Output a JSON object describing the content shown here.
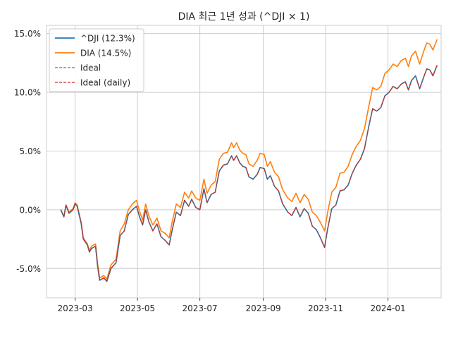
{
  "chart_data": {
    "type": "line",
    "title": "DIA 최근 1년 성과 (^DJI × 1)",
    "xlabel": "",
    "ylabel": "",
    "x_range": [
      "2023-02-01",
      "2024-02-22"
    ],
    "ylim": [
      -7.5,
      15.7
    ],
    "y_ticks": [
      -5,
      0,
      5,
      10,
      15
    ],
    "y_tick_labels": [
      "-5.0%",
      "0.0%",
      "5.0%",
      "10.0%",
      "15.0%"
    ],
    "x_ticks": [
      "2023-03-01",
      "2023-05-01",
      "2023-07-01",
      "2023-09-01",
      "2023-11-01",
      "2024-01-01"
    ],
    "x_tick_labels": [
      "2023-03",
      "2023-05",
      "2023-07",
      "2023-09",
      "2023-11",
      "2024-01"
    ],
    "grid": true,
    "legend_position": "top-left",
    "series": [
      {
        "name": "^DJI (12.3%)",
        "color": "#1f77b4",
        "style": "solid",
        "points": [
          [
            "2023-02-15",
            0.0
          ],
          [
            "2023-02-18",
            -0.6
          ],
          [
            "2023-02-20",
            0.4
          ],
          [
            "2023-02-23",
            -0.3
          ],
          [
            "2023-02-27",
            0.0
          ],
          [
            "2023-03-01",
            0.5
          ],
          [
            "2023-03-03",
            0.3
          ],
          [
            "2023-03-07",
            -1.2
          ],
          [
            "2023-03-09",
            -2.5
          ],
          [
            "2023-03-13",
            -3.0
          ],
          [
            "2023-03-15",
            -3.6
          ],
          [
            "2023-03-17",
            -3.3
          ],
          [
            "2023-03-21",
            -3.1
          ],
          [
            "2023-03-23",
            -4.8
          ],
          [
            "2023-03-25",
            -6.0
          ],
          [
            "2023-03-29",
            -5.8
          ],
          [
            "2023-04-01",
            -6.1
          ],
          [
            "2023-04-05",
            -5.0
          ],
          [
            "2023-04-10",
            -4.5
          ],
          [
            "2023-04-14",
            -2.2
          ],
          [
            "2023-04-18",
            -1.8
          ],
          [
            "2023-04-22",
            -0.4
          ],
          [
            "2023-04-26",
            0.0
          ],
          [
            "2023-04-30",
            0.3
          ],
          [
            "2023-05-03",
            -0.6
          ],
          [
            "2023-05-06",
            -1.3
          ],
          [
            "2023-05-09",
            0.0
          ],
          [
            "2023-05-12",
            -1.0
          ],
          [
            "2023-05-16",
            -1.8
          ],
          [
            "2023-05-20",
            -1.2
          ],
          [
            "2023-05-24",
            -2.3
          ],
          [
            "2023-05-28",
            -2.6
          ],
          [
            "2023-06-01",
            -3.0
          ],
          [
            "2023-06-04",
            -1.7
          ],
          [
            "2023-06-08",
            -0.2
          ],
          [
            "2023-06-12",
            -0.5
          ],
          [
            "2023-06-16",
            0.8
          ],
          [
            "2023-06-20",
            0.3
          ],
          [
            "2023-06-23",
            0.9
          ],
          [
            "2023-06-27",
            0.2
          ],
          [
            "2023-07-01",
            0.0
          ],
          [
            "2023-07-05",
            1.8
          ],
          [
            "2023-07-08",
            0.6
          ],
          [
            "2023-07-12",
            1.3
          ],
          [
            "2023-07-16",
            1.5
          ],
          [
            "2023-07-20",
            3.3
          ],
          [
            "2023-07-24",
            3.8
          ],
          [
            "2023-07-28",
            3.9
          ],
          [
            "2023-08-01",
            4.6
          ],
          [
            "2023-08-03",
            4.2
          ],
          [
            "2023-08-06",
            4.6
          ],
          [
            "2023-08-09",
            4.0
          ],
          [
            "2023-08-12",
            3.7
          ],
          [
            "2023-08-15",
            3.6
          ],
          [
            "2023-08-18",
            2.8
          ],
          [
            "2023-08-22",
            2.6
          ],
          [
            "2023-08-26",
            3.0
          ],
          [
            "2023-08-29",
            3.6
          ],
          [
            "2023-09-02",
            3.5
          ],
          [
            "2023-09-05",
            2.6
          ],
          [
            "2023-09-08",
            2.9
          ],
          [
            "2023-09-12",
            2.0
          ],
          [
            "2023-09-16",
            1.6
          ],
          [
            "2023-09-20",
            0.5
          ],
          [
            "2023-09-25",
            -0.2
          ],
          [
            "2023-09-29",
            -0.5
          ],
          [
            "2023-10-03",
            0.2
          ],
          [
            "2023-10-07",
            -0.6
          ],
          [
            "2023-10-11",
            0.1
          ],
          [
            "2023-10-15",
            -0.3
          ],
          [
            "2023-10-19",
            -1.4
          ],
          [
            "2023-10-23",
            -1.7
          ],
          [
            "2023-10-27",
            -2.4
          ],
          [
            "2023-10-31",
            -3.2
          ],
          [
            "2023-11-03",
            -1.6
          ],
          [
            "2023-11-07",
            0.1
          ],
          [
            "2023-11-11",
            0.4
          ],
          [
            "2023-11-15",
            1.6
          ],
          [
            "2023-11-19",
            1.7
          ],
          [
            "2023-11-23",
            2.1
          ],
          [
            "2023-11-27",
            3.1
          ],
          [
            "2023-12-01",
            3.8
          ],
          [
            "2023-12-05",
            4.3
          ],
          [
            "2023-12-09",
            5.2
          ],
          [
            "2023-12-13",
            7.0
          ],
          [
            "2023-12-17",
            8.6
          ],
          [
            "2023-12-21",
            8.4
          ],
          [
            "2023-12-25",
            8.7
          ],
          [
            "2023-12-29",
            9.7
          ],
          [
            "2024-01-02",
            10.0
          ],
          [
            "2024-01-06",
            10.5
          ],
          [
            "2024-01-10",
            10.3
          ],
          [
            "2024-01-14",
            10.7
          ],
          [
            "2024-01-18",
            10.9
          ],
          [
            "2024-01-21",
            10.2
          ],
          [
            "2024-01-24",
            11.0
          ],
          [
            "2024-01-28",
            11.4
          ],
          [
            "2024-02-01",
            10.3
          ],
          [
            "2024-02-05",
            11.3
          ],
          [
            "2024-02-08",
            12.0
          ],
          [
            "2024-02-11",
            11.9
          ],
          [
            "2024-02-14",
            11.4
          ],
          [
            "2024-02-18",
            12.3
          ]
        ]
      },
      {
        "name": "DIA (14.5%)",
        "color": "#ff7f0e",
        "style": "solid",
        "points": [
          [
            "2023-02-15",
            0.0
          ],
          [
            "2023-02-18",
            -0.6
          ],
          [
            "2023-02-20",
            0.4
          ],
          [
            "2023-02-23",
            -0.2
          ],
          [
            "2023-02-27",
            0.1
          ],
          [
            "2023-03-01",
            0.6
          ],
          [
            "2023-03-03",
            0.4
          ],
          [
            "2023-03-07",
            -1.1
          ],
          [
            "2023-03-09",
            -2.4
          ],
          [
            "2023-03-13",
            -2.9
          ],
          [
            "2023-03-15",
            -3.5
          ],
          [
            "2023-03-17",
            -3.1
          ],
          [
            "2023-03-21",
            -2.9
          ],
          [
            "2023-03-23",
            -4.6
          ],
          [
            "2023-03-25",
            -5.8
          ],
          [
            "2023-03-29",
            -5.6
          ],
          [
            "2023-04-01",
            -5.9
          ],
          [
            "2023-04-05",
            -4.7
          ],
          [
            "2023-04-10",
            -4.2
          ],
          [
            "2023-04-14",
            -1.8
          ],
          [
            "2023-04-18",
            -1.2
          ],
          [
            "2023-04-22",
            0.0
          ],
          [
            "2023-04-26",
            0.5
          ],
          [
            "2023-04-30",
            0.8
          ],
          [
            "2023-05-03",
            -0.1
          ],
          [
            "2023-05-06",
            -0.9
          ],
          [
            "2023-05-09",
            0.5
          ],
          [
            "2023-05-12",
            -0.5
          ],
          [
            "2023-05-16",
            -1.3
          ],
          [
            "2023-05-20",
            -0.7
          ],
          [
            "2023-05-24",
            -1.8
          ],
          [
            "2023-05-28",
            -2.0
          ],
          [
            "2023-06-01",
            -2.4
          ],
          [
            "2023-06-04",
            -1.0
          ],
          [
            "2023-06-08",
            0.5
          ],
          [
            "2023-06-12",
            0.2
          ],
          [
            "2023-06-16",
            1.5
          ],
          [
            "2023-06-20",
            1.0
          ],
          [
            "2023-06-23",
            1.6
          ],
          [
            "2023-06-27",
            1.0
          ],
          [
            "2023-07-01",
            0.8
          ],
          [
            "2023-07-05",
            2.6
          ],
          [
            "2023-07-08",
            1.4
          ],
          [
            "2023-07-12",
            2.1
          ],
          [
            "2023-07-16",
            2.4
          ],
          [
            "2023-07-20",
            4.3
          ],
          [
            "2023-07-24",
            4.8
          ],
          [
            "2023-07-28",
            4.9
          ],
          [
            "2023-08-01",
            5.7
          ],
          [
            "2023-08-03",
            5.3
          ],
          [
            "2023-08-06",
            5.7
          ],
          [
            "2023-08-09",
            5.1
          ],
          [
            "2023-08-12",
            4.8
          ],
          [
            "2023-08-15",
            4.7
          ],
          [
            "2023-08-18",
            3.9
          ],
          [
            "2023-08-22",
            3.7
          ],
          [
            "2023-08-26",
            4.2
          ],
          [
            "2023-08-29",
            4.8
          ],
          [
            "2023-09-02",
            4.7
          ],
          [
            "2023-09-05",
            3.7
          ],
          [
            "2023-09-08",
            4.1
          ],
          [
            "2023-09-12",
            3.2
          ],
          [
            "2023-09-16",
            2.8
          ],
          [
            "2023-09-20",
            1.7
          ],
          [
            "2023-09-25",
            1.0
          ],
          [
            "2023-09-29",
            0.7
          ],
          [
            "2023-10-03",
            1.4
          ],
          [
            "2023-10-07",
            0.6
          ],
          [
            "2023-10-11",
            1.3
          ],
          [
            "2023-10-15",
            0.9
          ],
          [
            "2023-10-19",
            -0.2
          ],
          [
            "2023-10-23",
            -0.5
          ],
          [
            "2023-10-27",
            -1.1
          ],
          [
            "2023-10-31",
            -1.8
          ],
          [
            "2023-11-03",
            -0.2
          ],
          [
            "2023-11-07",
            1.5
          ],
          [
            "2023-11-11",
            1.9
          ],
          [
            "2023-11-15",
            3.1
          ],
          [
            "2023-11-19",
            3.2
          ],
          [
            "2023-11-23",
            3.7
          ],
          [
            "2023-11-27",
            4.7
          ],
          [
            "2023-12-01",
            5.4
          ],
          [
            "2023-12-05",
            5.9
          ],
          [
            "2023-12-09",
            6.9
          ],
          [
            "2023-12-13",
            8.7
          ],
          [
            "2023-12-17",
            10.4
          ],
          [
            "2023-12-21",
            10.2
          ],
          [
            "2023-12-25",
            10.5
          ],
          [
            "2023-12-29",
            11.6
          ],
          [
            "2024-01-02",
            11.9
          ],
          [
            "2024-01-06",
            12.4
          ],
          [
            "2024-01-10",
            12.2
          ],
          [
            "2024-01-14",
            12.7
          ],
          [
            "2024-01-18",
            12.9
          ],
          [
            "2024-01-21",
            12.2
          ],
          [
            "2024-01-24",
            13.1
          ],
          [
            "2024-01-28",
            13.5
          ],
          [
            "2024-02-01",
            12.4
          ],
          [
            "2024-02-05",
            13.5
          ],
          [
            "2024-02-08",
            14.2
          ],
          [
            "2024-02-11",
            14.1
          ],
          [
            "2024-02-14",
            13.6
          ],
          [
            "2024-02-18",
            14.5
          ]
        ]
      },
      {
        "name": "Ideal",
        "color": "#2ca02c",
        "style": "dashed",
        "same_as": "^DJI (12.3%)"
      },
      {
        "name": "Ideal (daily)",
        "color": "#d62728",
        "style": "dashed",
        "same_as": "^DJI (12.3%)"
      }
    ]
  }
}
